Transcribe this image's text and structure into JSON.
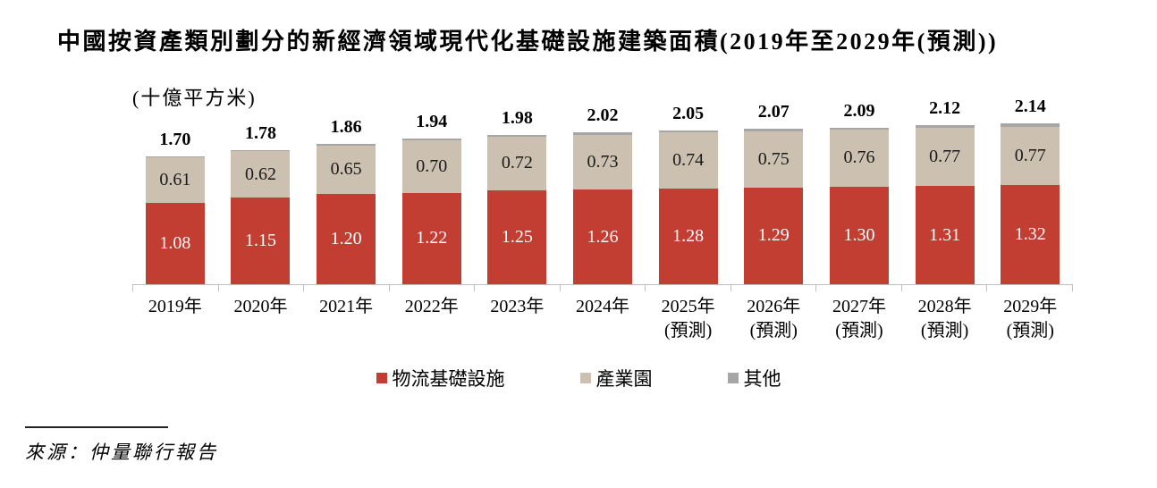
{
  "title": "中國按資產類別劃分的新經濟領域現代化基礎設施建築面積(2019年至2029年(預測))",
  "unit_label": "(十億平方米)",
  "source": "來源：仲量聯行報告",
  "colors": {
    "logistics_red": "#c23d32",
    "industrial_park_tan": "#ccc1b0",
    "others_gray": "#a6a6a6",
    "axis_gray": "#bfbfbf"
  },
  "legend": [
    {
      "label": "物流基礎設施",
      "color": "#c23d32"
    },
    {
      "label": "產業園",
      "color": "#ccc1b0"
    },
    {
      "label": "其他",
      "color": "#a6a6a6"
    }
  ],
  "chart_data": {
    "type": "bar",
    "stacked": true,
    "title": "中國按資產類別劃分的新經濟領域現代化基礎設施建築面積(2019年至2029年(預測))",
    "ylabel": "十億平方米",
    "xlabel": "",
    "ylim": [
      0,
      2.3
    ],
    "grid": false,
    "legend_position": "bottom",
    "categories": [
      "2019年",
      "2020年",
      "2021年",
      "2022年",
      "2023年",
      "2024年",
      "2025年",
      "2026年",
      "2027年",
      "2028年",
      "2029年"
    ],
    "category_notes": [
      "",
      "",
      "",
      "",
      "",
      "",
      "(預測)",
      "(預測)",
      "(預測)",
      "(預測)",
      "(預測)"
    ],
    "series": [
      {
        "name": "物流基礎設施",
        "color": "#c23d32",
        "labels_shown": true,
        "values": [
          1.08,
          1.15,
          1.2,
          1.22,
          1.25,
          1.26,
          1.28,
          1.29,
          1.3,
          1.31,
          1.32
        ]
      },
      {
        "name": "產業園",
        "color": "#ccc1b0",
        "labels_shown": true,
        "values": [
          0.61,
          0.62,
          0.65,
          0.7,
          0.72,
          0.73,
          0.74,
          0.75,
          0.76,
          0.77,
          0.77
        ]
      },
      {
        "name": "其他",
        "color": "#a6a6a6",
        "labels_shown": false,
        "values_estimated": true,
        "values": [
          0.01,
          0.01,
          0.01,
          0.02,
          0.01,
          0.03,
          0.03,
          0.03,
          0.03,
          0.04,
          0.05
        ]
      }
    ],
    "totals": [
      1.7,
      1.78,
      1.86,
      1.94,
      1.98,
      2.02,
      2.05,
      2.07,
      2.09,
      2.12,
      2.14
    ]
  }
}
